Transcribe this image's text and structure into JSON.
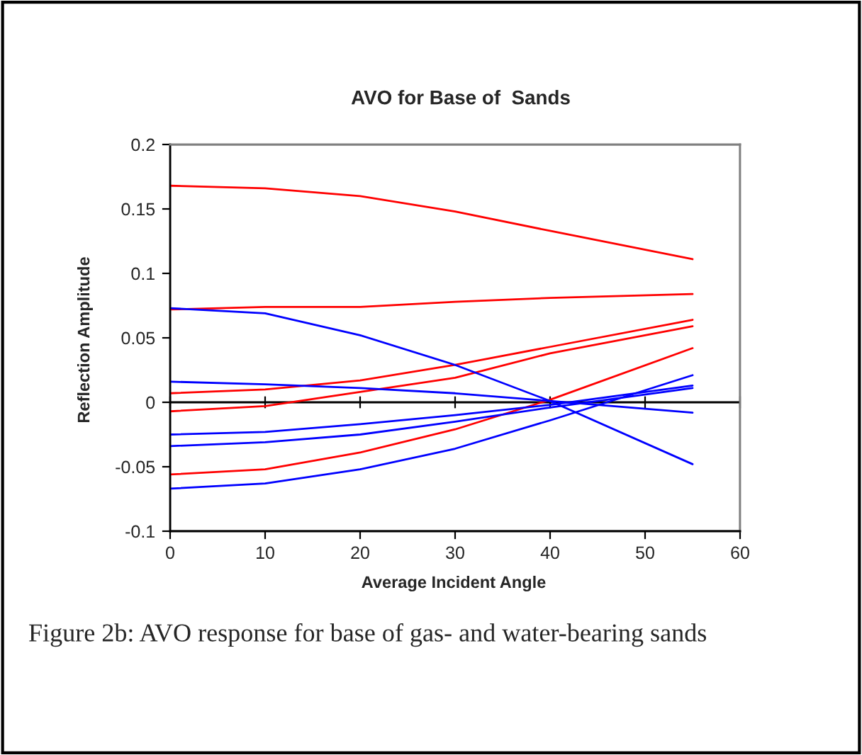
{
  "chart_data": {
    "type": "line",
    "title": "AVO for Base of  Sands",
    "xlabel": "Average Incident Angle",
    "ylabel": "Reflection Amplitude",
    "x": [
      0,
      10,
      20,
      30,
      40,
      55
    ],
    "series": [
      {
        "color": "#ff0000",
        "values": [
          0.168,
          0.166,
          0.16,
          0.148,
          0.133,
          0.111
        ]
      },
      {
        "color": "#ff0000",
        "values": [
          0.072,
          0.074,
          0.074,
          0.078,
          0.081,
          0.084
        ]
      },
      {
        "color": "#ff0000",
        "values": [
          0.007,
          0.01,
          0.017,
          0.029,
          0.043,
          0.064
        ]
      },
      {
        "color": "#ff0000",
        "values": [
          -0.007,
          -0.003,
          0.008,
          0.019,
          0.038,
          0.059
        ]
      },
      {
        "color": "#ff0000",
        "values": [
          -0.056,
          -0.052,
          -0.039,
          -0.021,
          0.002,
          0.042
        ]
      },
      {
        "color": "#0000ff",
        "values": [
          0.073,
          0.069,
          0.052,
          0.029,
          0.001,
          -0.048
        ]
      },
      {
        "color": "#0000ff",
        "values": [
          0.016,
          0.014,
          0.011,
          0.007,
          0.001,
          -0.008
        ]
      },
      {
        "color": "#0000ff",
        "values": [
          -0.025,
          -0.023,
          -0.017,
          -0.01,
          -0.002,
          0.013
        ]
      },
      {
        "color": "#0000ff",
        "values": [
          -0.034,
          -0.031,
          -0.025,
          -0.015,
          -0.004,
          0.011
        ]
      },
      {
        "color": "#0000ff",
        "values": [
          -0.067,
          -0.063,
          -0.052,
          -0.036,
          -0.014,
          0.021
        ]
      }
    ],
    "xlim": [
      0,
      60
    ],
    "xticks": [
      0,
      10,
      20,
      30,
      40,
      50,
      60
    ],
    "ylim": [
      -0.1,
      0.2
    ],
    "yticks": [
      {
        "value": -0.1,
        "label": "-0.1"
      },
      {
        "value": -0.05,
        "label": "-0.05"
      },
      {
        "value": 0,
        "label": "0"
      },
      {
        "value": 0.05,
        "label": "0.05"
      },
      {
        "value": 0.1,
        "label": "0.1"
      },
      {
        "value": 0.15,
        "label": "0.15"
      },
      {
        "value": 0.2,
        "label": "0.2"
      }
    ],
    "ref_lines": [
      {
        "axis": "y",
        "value": 0,
        "color": "#000000"
      }
    ],
    "grid": false,
    "marker": "none",
    "line_style": "solid",
    "annotations": [
      "Figure 2b: AVO response for base of gas- and water-bearing sands"
    ]
  }
}
